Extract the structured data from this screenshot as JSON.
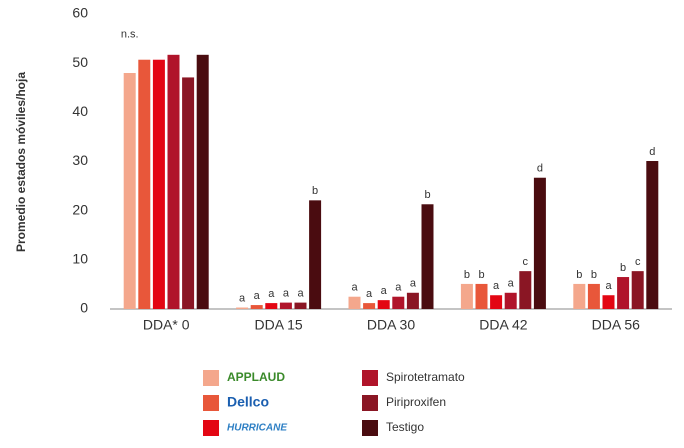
{
  "chart_data": {
    "type": "bar",
    "y_axis_label": "Promedio estados móviles/hoja",
    "categories": [
      "DDA* 0",
      "DDA 15",
      "DDA 30",
      "DDA 42",
      "DDA 56"
    ],
    "ylim": [
      0,
      60
    ],
    "yticks": [
      0,
      10,
      20,
      30,
      40,
      50,
      60
    ],
    "grid": false,
    "annotations": [
      {
        "text": "n.s.",
        "category": 0
      }
    ],
    "series": [
      {
        "name": "APPLAUD",
        "color": "#f4a78c",
        "values": [
          48,
          0.3,
          2.5,
          5.1,
          5.1
        ],
        "letters": [
          null,
          "a",
          "a",
          "b",
          "b"
        ]
      },
      {
        "name": "Dellco",
        "color": "#e8573a",
        "values": [
          50.7,
          0.8,
          1.2,
          5.1,
          5.1
        ],
        "letters": [
          null,
          "a",
          "a",
          "b",
          "b"
        ]
      },
      {
        "name": "HURRICANE",
        "color": "#e30613",
        "values": [
          50.7,
          1.2,
          1.8,
          2.8,
          2.8
        ],
        "letters": [
          null,
          "a",
          "a",
          "a",
          "a"
        ]
      },
      {
        "name": "Spirotetramato",
        "color": "#b0142a",
        "values": [
          51.7,
          1.3,
          2.5,
          3.3,
          6.5
        ],
        "letters": [
          null,
          "a",
          "a",
          "a",
          "b"
        ]
      },
      {
        "name": "Piriproxifen",
        "color": "#8a1624",
        "values": [
          47.1,
          1.3,
          3.3,
          7.7,
          7.7
        ],
        "letters": [
          null,
          "a",
          "a",
          "c",
          "c"
        ]
      },
      {
        "name": "Testigo",
        "color": "#4a0c10",
        "values": [
          51.7,
          22.1,
          21.3,
          26.7,
          30.1
        ],
        "letters": [
          null,
          "b",
          "b",
          "d",
          "d"
        ]
      }
    ]
  }
}
